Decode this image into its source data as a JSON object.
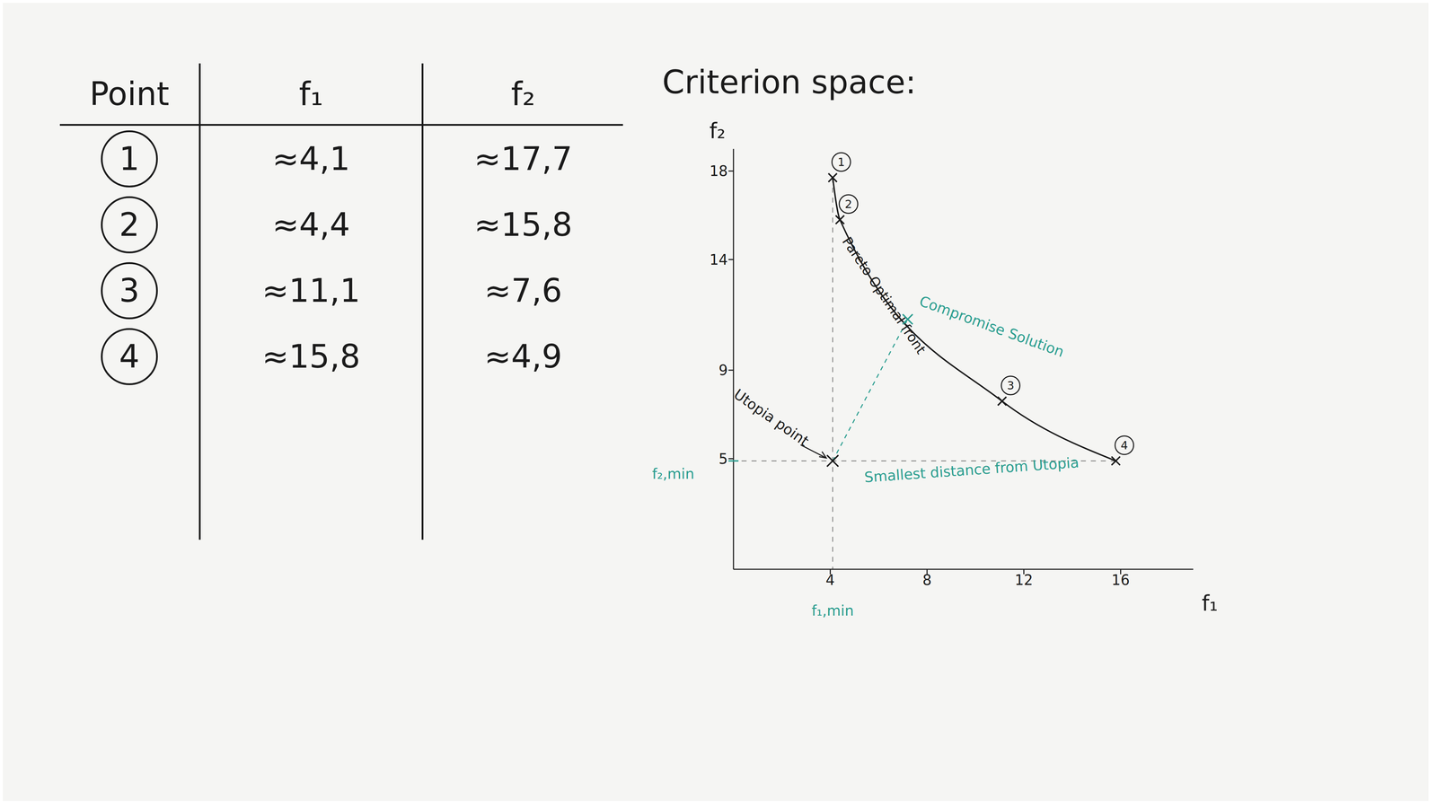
{
  "table": {
    "header": [
      "Point",
      "f₁",
      "f₂"
    ],
    "rows": [
      [
        "1",
        "≈4,1",
        "≈17,7"
      ],
      [
        "2",
        "≈4,4",
        "≈15,8"
      ],
      [
        "3",
        "≈11,1",
        "≈7,6"
      ],
      [
        "4",
        "≈15,8",
        "≈4,9"
      ]
    ]
  },
  "chart_data": {
    "type": "line",
    "title": "Criterion space:",
    "x_label": "f₁",
    "y_label": "f₂",
    "xlim": [
      0,
      19
    ],
    "ylim": [
      0,
      19
    ],
    "xticks": [
      4,
      8,
      12,
      16
    ],
    "yticks": [
      5,
      9,
      14,
      18
    ],
    "grid": false,
    "x": [
      4.1,
      4.4,
      11.1,
      15.8
    ],
    "series": [
      {
        "name": "Pareto Optimal front",
        "color": "#1a1a1a",
        "marker": "x",
        "line_style": "solid",
        "values": [
          17.7,
          15.8,
          7.6,
          4.9
        ],
        "point_labels": [
          "1",
          "2",
          "3",
          "4"
        ]
      }
    ],
    "utopia_point": {
      "label": "Utopia point",
      "x": 4.1,
      "y": 4.9,
      "color": "#1a1a1a"
    },
    "compromise_solution": {
      "label": "Compromise Solution",
      "x": 7.2,
      "y": 11.3,
      "color": "#2a9d8f"
    },
    "distance_label": "Smallest distance from Utopia",
    "f1_min_label": "f₁,min",
    "f2_min_label": "f₂,min",
    "annotation_color": "#2a9d8f"
  }
}
